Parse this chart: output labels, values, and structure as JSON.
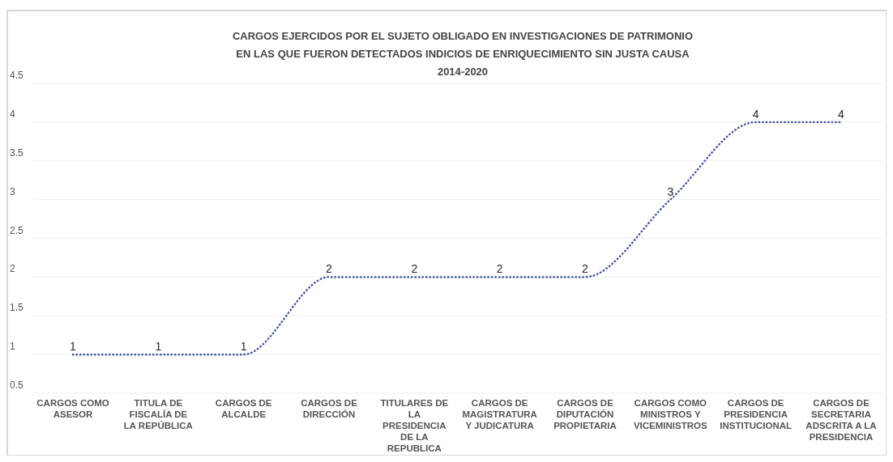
{
  "chart_data": {
    "type": "line",
    "title": "CARGOS EJERCIDOS POR EL SUJETO OBLIGADO EN INVESTIGACIONES DE PATRIMONIO\nEN LAS QUE FUERON DETECTADOS INDICIOS DE ENRIQUECIMIENTO SIN JUSTA CAUSA\n2014-2020",
    "categories": [
      "CARGOS COMO ASESOR",
      "TITULA DE FISCALÍA DE LA REPÚBLICA",
      "CARGOS DE ALCALDE",
      "CARGOS DE DIRECCIÓN",
      "TITULARES DE LA PRESIDENCIA DE LA REPUBLICA",
      "CARGOS DE MAGISTRATURA Y JUDICATURA",
      "CARGOS DE DIPUTACIÓN PROPIETARIA",
      "CARGOS COMO MINISTROS Y VICEMINISTROS",
      "CARGOS DE PRESIDENCIA INSTITUCIONAL",
      "CARGOS DE SECRETARIA ADSCRITA A LA PRESIDENCIA"
    ],
    "series": [
      {
        "color": "#4a5aa0",
        "values": [
          1,
          1,
          1,
          2,
          2,
          2,
          2,
          3,
          4,
          4
        ]
      }
    ],
    "ylim": [
      0.5,
      4.5
    ],
    "yticks": [
      0.5,
      1,
      1.5,
      2,
      2.5,
      3,
      3.5,
      4,
      4.5
    ],
    "grid": "y",
    "data_labels": true,
    "line_style": "dotted",
    "marker": "none"
  }
}
